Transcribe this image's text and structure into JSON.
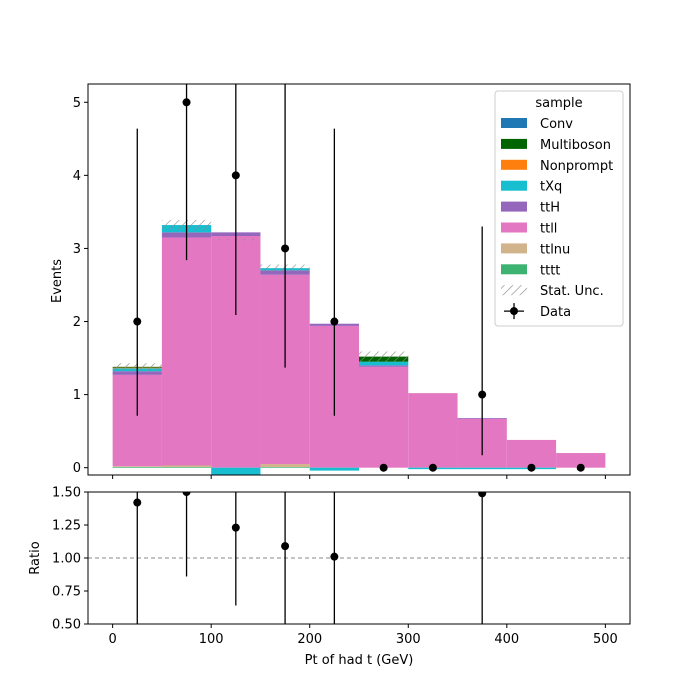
{
  "chart_data": {
    "type": "bar",
    "main": {
      "ylabel": "Events",
      "ylim": [
        -0.1,
        5.25
      ],
      "yticks": [
        "0",
        "1",
        "2",
        "3",
        "4",
        "5"
      ],
      "bin_edges": [
        0,
        50,
        100,
        150,
        200,
        250,
        300,
        350,
        400,
        450,
        500
      ],
      "stacked_series": [
        {
          "name": "tttt",
          "color": "#3cb371",
          "values": [
            0.01,
            0.01,
            0.0,
            0.01,
            0.0,
            0.0,
            0.0,
            0.0,
            0.0,
            0.0
          ]
        },
        {
          "name": "ttlnu",
          "color": "#d2b48c",
          "values": [
            0.01,
            0.02,
            0.0,
            0.04,
            0.0,
            0.0,
            0.0,
            0.0,
            0.0,
            0.0
          ]
        },
        {
          "name": "ttll",
          "color": "#e377c2",
          "values": [
            1.25,
            3.12,
            3.17,
            2.59,
            1.94,
            1.38,
            1.02,
            0.67,
            0.38,
            0.2
          ]
        },
        {
          "name": "ttH",
          "color": "#9467bd",
          "values": [
            0.05,
            0.07,
            0.05,
            0.06,
            0.03,
            0.02,
            0.0,
            0.01,
            0.0,
            0.0
          ]
        },
        {
          "name": "tXq",
          "color": "#17becf",
          "values": [
            0.04,
            0.1,
            -0.1,
            0.03,
            -0.04,
            0.05,
            -0.02,
            -0.02,
            -0.02,
            0.0
          ]
        },
        {
          "name": "Nonprompt",
          "color": "#ff7f0e",
          "values": [
            0.01,
            0.0,
            0.0,
            0.0,
            0.0,
            0.0,
            0.0,
            0.0,
            0.0,
            0.0
          ]
        },
        {
          "name": "Multiboson",
          "color": "#006400",
          "values": [
            0.01,
            0.0,
            0.0,
            0.0,
            0.0,
            0.07,
            0.0,
            0.0,
            0.0,
            0.0
          ]
        },
        {
          "name": "Conv",
          "color": "#1f77b4",
          "values": [
            0.0,
            0.0,
            0.0,
            0.0,
            0.0,
            0.0,
            0.0,
            0.0,
            0.0,
            0.0
          ]
        }
      ],
      "stat_unc": [
        0.05,
        0.07,
        0.01,
        0.05,
        0.0,
        0.07,
        0.0,
        0.0,
        0.0,
        0.0
      ],
      "data": {
        "name": "Data",
        "x": [
          25,
          75,
          125,
          175,
          225,
          275,
          325,
          375,
          425,
          475
        ],
        "y": [
          2,
          5,
          4,
          3,
          2,
          0,
          0,
          1,
          0,
          0
        ],
        "err_low": [
          1.29,
          2.16,
          1.91,
          1.63,
          1.29,
          0,
          0,
          0.83,
          0,
          0
        ],
        "err_high": [
          2.64,
          3.38,
          3.16,
          2.92,
          2.64,
          0,
          0,
          2.3,
          0,
          0
        ]
      }
    },
    "ratio": {
      "ylabel": "Ratio",
      "ylim": [
        0.5,
        1.5
      ],
      "yticks": [
        "0.50",
        "0.75",
        "1.00",
        "1.25",
        "1.50"
      ],
      "reference": 1.0,
      "x": [
        25,
        75,
        125,
        175,
        225,
        375
      ],
      "y": [
        1.42,
        1.5,
        1.23,
        1.09,
        1.01,
        1.49
      ],
      "err_low": [
        0.92,
        0.64,
        0.59,
        0.59,
        0.65,
        1.0
      ],
      "err_high": [
        1.0,
        1.0,
        1.0,
        1.0,
        1.0,
        1.0
      ]
    },
    "xlabel": "Pt of had t (GeV)",
    "xlim": [
      -25,
      525
    ],
    "xticks": [
      "0",
      "100",
      "200",
      "300",
      "400",
      "500"
    ],
    "legend": {
      "title": "sample",
      "position": "top-right",
      "entries": [
        {
          "label": "Conv",
          "kind": "patch",
          "color": "#1f77b4"
        },
        {
          "label": "Multiboson",
          "kind": "patch",
          "color": "#006400"
        },
        {
          "label": "Nonprompt",
          "kind": "patch",
          "color": "#ff7f0e"
        },
        {
          "label": "tXq",
          "kind": "patch",
          "color": "#17becf"
        },
        {
          "label": "ttH",
          "kind": "patch",
          "color": "#9467bd"
        },
        {
          "label": "ttll",
          "kind": "patch",
          "color": "#e377c2"
        },
        {
          "label": "ttlnu",
          "kind": "patch",
          "color": "#d2b48c"
        },
        {
          "label": "tttt",
          "kind": "patch",
          "color": "#3cb371"
        },
        {
          "label": "Stat. Unc.",
          "kind": "hatch",
          "color": "#888888"
        },
        {
          "label": "Data",
          "kind": "marker",
          "color": "#000000"
        }
      ]
    }
  }
}
